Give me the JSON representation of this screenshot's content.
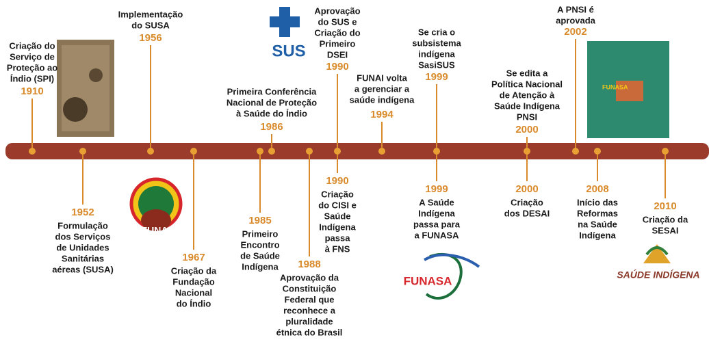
{
  "events": [
    {
      "year": "1910",
      "lines": [
        "Criação do",
        "Serviço de",
        "Proteção ao",
        "Índio (SPI)"
      ]
    },
    {
      "year": "1952",
      "lines": [
        "Formulação",
        "dos Serviços",
        "de Unidades",
        "Sanitárias",
        "aéreas (SUSA)"
      ]
    },
    {
      "year": "1956",
      "lines": [
        "Implementação",
        "do SUSA"
      ]
    },
    {
      "year": "1967",
      "lines": [
        "Criação da",
        "Fundação",
        "Nacional",
        "do Índio"
      ]
    },
    {
      "year": "1985",
      "lines": [
        "Primeiro",
        "Encontro",
        "de Saúde",
        "Indígena"
      ]
    },
    {
      "year": "1986",
      "lines": [
        "Primeira Conferência",
        "Nacional de Proteção",
        "à Saúde do Índio"
      ]
    },
    {
      "year": "1988",
      "lines": [
        "Aprovação da",
        "Constituição",
        "Federal que",
        "reconhece a",
        "pluralidade",
        "étnica do Brasil"
      ]
    },
    {
      "year": "1990",
      "lines": [
        "Aprovação",
        "do SUS e",
        "Criação do",
        "Primeiro",
        "DSEI"
      ]
    },
    {
      "year": "1990",
      "lines": [
        "Criação",
        "do CISI e",
        "Saúde",
        "Indígena",
        "passa",
        "à FNS"
      ]
    },
    {
      "year": "1994",
      "lines": [
        "FUNAI volta",
        "a gerenciar a",
        "saúde indígena"
      ]
    },
    {
      "year": "1999",
      "lines": [
        "Se cria o",
        "subsistema",
        "indígena",
        "SasiSUS"
      ]
    },
    {
      "year": "1999",
      "lines": [
        "A Saúde",
        "Indígena",
        "passa para",
        "a FUNASA"
      ]
    },
    {
      "year": "2000",
      "lines": [
        "Se edita a",
        "Política Nacional",
        "de Atenção à",
        "Saúde Indígena",
        "PNSI"
      ]
    },
    {
      "year": "2000",
      "lines": [
        "Criação",
        "dos DESAI"
      ]
    },
    {
      "year": "2002",
      "lines": [
        "A PNSI é",
        "aprovada"
      ]
    },
    {
      "year": "2008",
      "lines": [
        "Início das",
        "Reformas",
        "na Saúde",
        "Indígena"
      ]
    },
    {
      "year": "2010",
      "lines": [
        "Criação da",
        "SESAI"
      ]
    }
  ],
  "logos": {
    "sus": "SUS",
    "funai": "FUNAI",
    "funasa": "FUNASA",
    "saude_indigena": "SAÚDE INDÍGENA",
    "book": "FUNASA"
  }
}
